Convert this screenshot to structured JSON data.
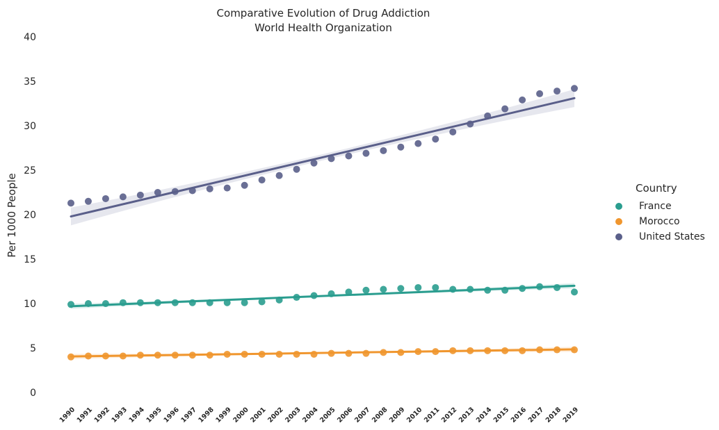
{
  "chart_data": {
    "type": "scatter",
    "title": "Comparative Evolution of Drug Addiction",
    "subtitle": "World Health Organization",
    "xlabel": "",
    "ylabel": "Per 1000 People",
    "ylim": [
      0,
      40
    ],
    "yticks": [
      "0",
      "5",
      "10",
      "15",
      "20",
      "25",
      "30",
      "35",
      "40"
    ],
    "categories": [
      "1990",
      "1991",
      "1992",
      "1993",
      "1994",
      "1995",
      "1996",
      "1997",
      "1998",
      "1999",
      "2000",
      "2001",
      "2002",
      "2003",
      "2004",
      "2005",
      "2006",
      "2007",
      "2008",
      "2009",
      "2010",
      "2011",
      "2012",
      "2013",
      "2014",
      "2015",
      "2016",
      "2017",
      "2018",
      "2019"
    ],
    "grid": false,
    "legend": {
      "title": "Country",
      "position": "right"
    },
    "series": [
      {
        "name": "France",
        "color": "#2a9d8f",
        "values": [
          9.9,
          10.0,
          10.0,
          10.1,
          10.1,
          10.1,
          10.1,
          10.1,
          10.1,
          10.1,
          10.1,
          10.2,
          10.4,
          10.7,
          10.9,
          11.1,
          11.3,
          11.5,
          11.6,
          11.7,
          11.8,
          11.8,
          11.6,
          11.6,
          11.5,
          11.5,
          11.7,
          11.9,
          11.8,
          11.3
        ],
        "trend": [
          9.7,
          12.0
        ]
      },
      {
        "name": "Morocco",
        "color": "#f0962e",
        "values": [
          4.0,
          4.1,
          4.1,
          4.1,
          4.2,
          4.2,
          4.2,
          4.2,
          4.2,
          4.3,
          4.3,
          4.3,
          4.3,
          4.3,
          4.3,
          4.4,
          4.4,
          4.4,
          4.5,
          4.5,
          4.6,
          4.6,
          4.7,
          4.7,
          4.7,
          4.7,
          4.7,
          4.8,
          4.8,
          4.8
        ],
        "trend": [
          4.05,
          4.85
        ]
      },
      {
        "name": "United States",
        "color": "#5a5f8a",
        "values": [
          21.3,
          21.5,
          21.8,
          22.0,
          22.2,
          22.5,
          22.6,
          22.7,
          22.9,
          23.0,
          23.3,
          23.9,
          24.4,
          25.1,
          25.8,
          26.3,
          26.6,
          26.9,
          27.2,
          27.6,
          28.0,
          28.5,
          29.3,
          30.2,
          31.1,
          31.9,
          32.9,
          33.6,
          33.9,
          34.2
        ],
        "trend": [
          19.8,
          33.1
        ]
      }
    ]
  }
}
